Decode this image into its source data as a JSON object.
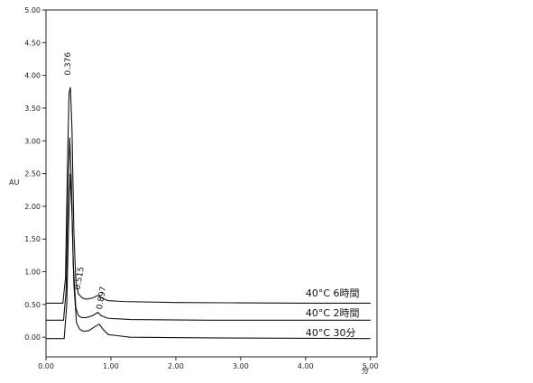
{
  "chart_data": {
    "type": "line",
    "xlabel": "分",
    "ylabel": "AU",
    "xlim": [
      0,
      5.1
    ],
    "ylim": [
      -0.3,
      5.0
    ],
    "grid": false,
    "x_ticks": [
      "0.00",
      "1.00",
      "2.00",
      "3.00",
      "4.00",
      "5.00"
    ],
    "x_tick_values": [
      0,
      1,
      2,
      3,
      4,
      5
    ],
    "y_ticks": [
      "0.00",
      "0.50",
      "1.00",
      "1.50",
      "2.00",
      "2.50",
      "3.00",
      "3.50",
      "4.00",
      "4.50",
      "5.00"
    ],
    "y_tick_values": [
      0,
      0.5,
      1.0,
      1.5,
      2.0,
      2.5,
      3.0,
      3.5,
      4.0,
      4.5,
      5.0
    ],
    "series": [
      {
        "name": "40°C 6時間",
        "label_x": 4.0,
        "label_y": 0.62,
        "points": [
          [
            0.0,
            0.52
          ],
          [
            0.26,
            0.52
          ],
          [
            0.3,
            0.9
          ],
          [
            0.33,
            2.6
          ],
          [
            0.355,
            3.72
          ],
          [
            0.376,
            3.82
          ],
          [
            0.4,
            3.2
          ],
          [
            0.43,
            1.6
          ],
          [
            0.46,
            0.85
          ],
          [
            0.5,
            0.66
          ],
          [
            0.56,
            0.6
          ],
          [
            0.62,
            0.58
          ],
          [
            0.72,
            0.6
          ],
          [
            0.8,
            0.64
          ],
          [
            0.86,
            0.6
          ],
          [
            0.95,
            0.56
          ],
          [
            1.2,
            0.545
          ],
          [
            2.0,
            0.53
          ],
          [
            3.0,
            0.525
          ],
          [
            4.0,
            0.52
          ],
          [
            5.0,
            0.52
          ]
        ]
      },
      {
        "name": "40°C 2時間",
        "label_x": 4.0,
        "label_y": 0.32,
        "points": [
          [
            0.0,
            0.26
          ],
          [
            0.27,
            0.26
          ],
          [
            0.31,
            0.7
          ],
          [
            0.34,
            2.2
          ],
          [
            0.365,
            3.05
          ],
          [
            0.39,
            2.4
          ],
          [
            0.42,
            1.1
          ],
          [
            0.46,
            0.45
          ],
          [
            0.5,
            0.33
          ],
          [
            0.55,
            0.3
          ],
          [
            0.62,
            0.3
          ],
          [
            0.72,
            0.33
          ],
          [
            0.8,
            0.38
          ],
          [
            0.85,
            0.33
          ],
          [
            0.95,
            0.29
          ],
          [
            1.3,
            0.27
          ],
          [
            2.5,
            0.26
          ],
          [
            5.0,
            0.26
          ]
        ]
      },
      {
        "name": "40°C 30分",
        "label_x": 4.0,
        "label_y": 0.02,
        "points": [
          [
            0.0,
            -0.02
          ],
          [
            0.28,
            -0.02
          ],
          [
            0.32,
            0.5
          ],
          [
            0.35,
            1.8
          ],
          [
            0.375,
            2.5
          ],
          [
            0.4,
            1.9
          ],
          [
            0.43,
            0.8
          ],
          [
            0.47,
            0.22
          ],
          [
            0.52,
            0.12
          ],
          [
            0.58,
            0.09
          ],
          [
            0.66,
            0.1
          ],
          [
            0.75,
            0.16
          ],
          [
            0.82,
            0.2
          ],
          [
            0.88,
            0.12
          ],
          [
            0.96,
            0.04
          ],
          [
            1.3,
            0.0
          ],
          [
            2.5,
            -0.01
          ],
          [
            5.0,
            -0.02
          ]
        ]
      }
    ],
    "peak_annotations": [
      {
        "text": "0.376",
        "x": 0.376,
        "y": 4.0,
        "rotate": -90
      },
      {
        "text": "0.515",
        "x": 0.52,
        "y": 0.72,
        "rotate": -80
      },
      {
        "text": "0.897",
        "x": 0.86,
        "y": 0.42,
        "rotate": -80
      }
    ]
  }
}
